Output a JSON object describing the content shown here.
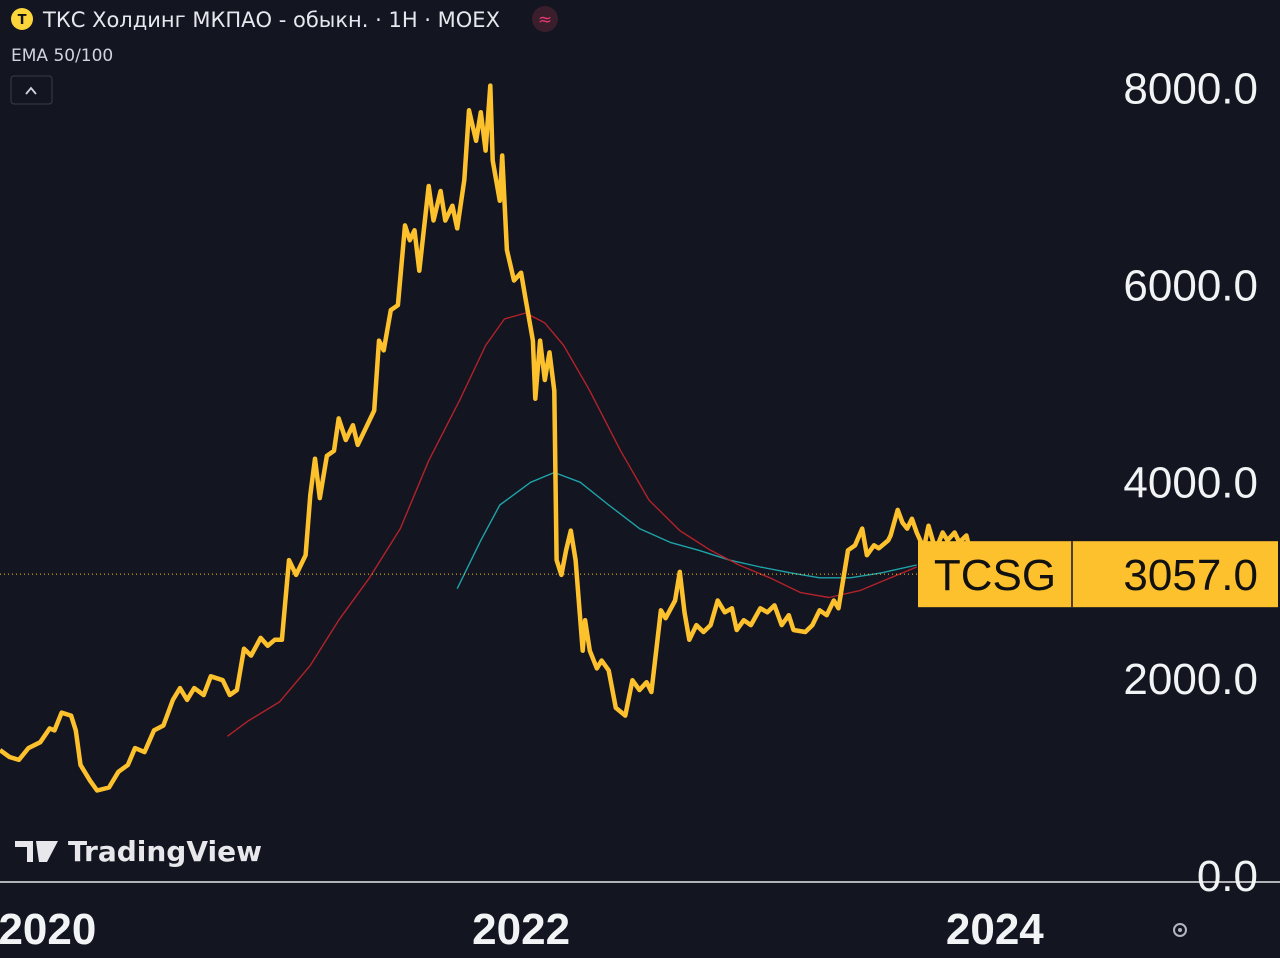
{
  "title": "ТКС Холдинг МКПАО - обыкн. · 1Н · MOEX",
  "indicator": "EMA 50/100",
  "watermark": "TradingView",
  "chart_data": {
    "type": "line",
    "xlim": [
      2019.8,
      2024.33
    ],
    "xticks": [
      2020,
      2022,
      2024
    ],
    "ylim": [
      -70,
      8890
    ],
    "yticks": [
      {
        "value": 0,
        "label": "0.0"
      },
      {
        "value": 2000,
        "label": "2000.0"
      },
      {
        "value": 4000,
        "label": "4000.0"
      },
      {
        "value": 6000,
        "label": "6000.0"
      },
      {
        "value": 8000,
        "label": "8000.0"
      }
    ],
    "last_price": {
      "value": 3057,
      "label": "3057.0"
    },
    "series": [
      {
        "name": "TCSG",
        "color": "#fcc12d",
        "x": [
          2019.8,
          2019.84,
          2019.88,
          2019.92,
          2019.97,
          2020.01,
          2020.03,
          2020.06,
          2020.1,
          2020.12,
          2020.14,
          2020.18,
          2020.21,
          2020.26,
          2020.3,
          2020.34,
          2020.37,
          2020.41,
          2020.45,
          2020.49,
          2020.53,
          2020.56,
          2020.59,
          2020.62,
          2020.66,
          2020.69,
          2020.74,
          2020.77,
          2020.8,
          2020.83,
          2020.86,
          2020.9,
          2020.93,
          2020.96,
          2020.99,
          2021.02,
          2021.05,
          2021.09,
          2021.11,
          2021.13,
          2021.15,
          2021.18,
          2021.21,
          2021.23,
          2021.26,
          2021.29,
          2021.31,
          2021.34,
          2021.38,
          2021.4,
          2021.42,
          2021.45,
          2021.48,
          2021.51,
          2021.53,
          2021.55,
          2021.57,
          2021.61,
          2021.63,
          2021.66,
          2021.68,
          2021.71,
          2021.73,
          2021.76,
          2021.78,
          2021.81,
          2021.83,
          2021.85,
          2021.87,
          2021.88,
          2021.91,
          2021.92,
          2021.94,
          2021.97,
          2022.0,
          2022.02,
          2022.05,
          2022.06,
          2022.08,
          2022.1,
          2022.12,
          2022.14,
          2022.15,
          2022.17,
          2022.19,
          2022.21,
          2022.23,
          2022.26,
          2022.27,
          2022.29,
          2022.32,
          2022.34,
          2022.37,
          2022.4,
          2022.44,
          2022.47,
          2022.5,
          2022.53,
          2022.55,
          2022.59,
          2022.61,
          2022.65,
          2022.67,
          2022.69,
          2022.71,
          2022.74,
          2022.77,
          2022.8,
          2022.83,
          2022.86,
          2022.89,
          2022.91,
          2022.94,
          2022.97,
          2023.01,
          2023.04,
          2023.07,
          2023.1,
          2023.13,
          2023.15,
          2023.2,
          2023.23,
          2023.26,
          2023.29,
          2023.32,
          2023.34,
          2023.38,
          2023.41,
          2023.44,
          2023.46,
          2023.49,
          2023.51,
          2023.55,
          2023.56,
          2023.59,
          2023.61,
          2023.63,
          2023.65,
          2023.67,
          2023.7,
          2023.72,
          2023.75,
          2023.78,
          2023.8,
          2023.83,
          2023.85,
          2023.88,
          2023.89
        ],
        "values": [
          1270,
          1200,
          1170,
          1290,
          1350,
          1490,
          1470,
          1650,
          1620,
          1470,
          1120,
          960,
          860,
          890,
          1050,
          1120,
          1290,
          1250,
          1470,
          1520,
          1780,
          1900,
          1780,
          1900,
          1830,
          2020,
          1980,
          1830,
          1880,
          2300,
          2230,
          2410,
          2330,
          2390,
          2390,
          3200,
          3050,
          3250,
          3860,
          4230,
          3830,
          4260,
          4310,
          4640,
          4420,
          4570,
          4370,
          4520,
          4720,
          5430,
          5330,
          5740,
          5790,
          6600,
          6450,
          6550,
          6140,
          7000,
          6650,
          6950,
          6650,
          6800,
          6570,
          7060,
          7770,
          7460,
          7750,
          7360,
          8020,
          7260,
          6850,
          7310,
          6350,
          6040,
          6120,
          5840,
          5430,
          4840,
          5430,
          5030,
          5310,
          4920,
          3200,
          3050,
          3300,
          3500,
          3200,
          2280,
          2590,
          2280,
          2100,
          2180,
          2080,
          1700,
          1620,
          1980,
          1880,
          1960,
          1860,
          2690,
          2610,
          2790,
          3080,
          2670,
          2390,
          2540,
          2470,
          2540,
          2790,
          2670,
          2710,
          2490,
          2590,
          2540,
          2710,
          2670,
          2740,
          2540,
          2640,
          2490,
          2470,
          2540,
          2690,
          2640,
          2790,
          2710,
          3300,
          3350,
          3520,
          3250,
          3350,
          3320,
          3400,
          3450,
          3710,
          3580,
          3520,
          3620,
          3480,
          3320,
          3550,
          3300,
          3480,
          3400,
          3480,
          3380,
          3450,
          3350
        ]
      },
      {
        "color": "#b2222a",
        "x": [
          2020.76,
          2020.85,
          2020.98,
          2021.11,
          2021.23,
          2021.36,
          2021.49,
          2021.61,
          2021.74,
          2021.85,
          2021.93,
          2022.02,
          2022.1,
          2022.18,
          2022.29,
          2022.42,
          2022.54,
          2022.67,
          2022.8,
          2022.92,
          2023.05,
          2023.18,
          2023.3,
          2023.43,
          2023.56,
          2023.67
        ],
        "values": [
          1410,
          1570,
          1760,
          2130,
          2590,
          3020,
          3520,
          4210,
          4820,
          5380,
          5650,
          5710,
          5610,
          5380,
          4920,
          4310,
          3810,
          3500,
          3300,
          3150,
          3020,
          2870,
          2820,
          2890,
          3020,
          3130
        ]
      },
      {
        "color": "#1fa3a8",
        "x": [
          2021.73,
          2021.83,
          2021.91,
          2022.04,
          2022.14,
          2022.25,
          2022.37,
          2022.5,
          2022.63,
          2022.75,
          2022.88,
          2023.01,
          2023.14,
          2023.26,
          2023.39,
          2023.52,
          2023.67
        ],
        "values": [
          2910,
          3400,
          3760,
          3990,
          4090,
          3990,
          3760,
          3520,
          3380,
          3300,
          3200,
          3130,
          3070,
          3020,
          3020,
          3070,
          3150
        ]
      }
    ]
  }
}
